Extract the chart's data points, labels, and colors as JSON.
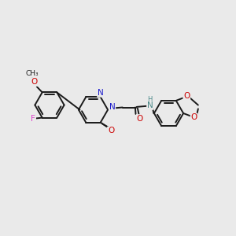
{
  "bg_color": "#eaeaea",
  "bond_color": "#1a1a1a",
  "bond_width": 1.4,
  "atom_colors": {
    "N": "#1a1acc",
    "O": "#cc0000",
    "F": "#dd44cc",
    "NH": "#4a8888",
    "C": "#1a1a1a"
  },
  "font_size": 7.5,
  "figsize": [
    3.0,
    3.0
  ],
  "dpi": 100,
  "xlim": [
    0,
    10
  ],
  "ylim": [
    0,
    10
  ]
}
